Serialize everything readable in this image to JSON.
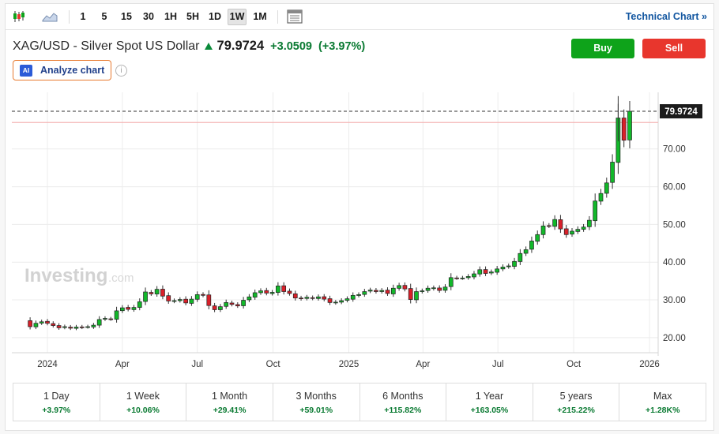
{
  "toolbar": {
    "intervals": [
      "1",
      "5",
      "15",
      "30",
      "1H",
      "5H",
      "1D",
      "1W",
      "1M"
    ],
    "active_interval": "1W",
    "technical_chart_label": "Technical Chart »"
  },
  "quote": {
    "name": "XAG/USD - Silver Spot US Dollar",
    "price": "79.9724",
    "change": "+3.0509",
    "change_pct": "(+3.97%)"
  },
  "actions": {
    "buy_label": "Buy",
    "sell_label": "Sell"
  },
  "analyze": {
    "badge": "AI",
    "label": "Analyze chart",
    "info_glyph": "i"
  },
  "watermark": {
    "brand": "Investing",
    "suffix": ".com"
  },
  "performance": [
    {
      "label": "1 Day",
      "value": "+3.97%"
    },
    {
      "label": "1 Week",
      "value": "+10.06%"
    },
    {
      "label": "1 Month",
      "value": "+29.41%"
    },
    {
      "label": "3 Months",
      "value": "+59.01%"
    },
    {
      "label": "6 Months",
      "value": "+115.82%"
    },
    {
      "label": "1 Year",
      "value": "+163.05%"
    },
    {
      "label": "5 years",
      "value": "+215.22%"
    },
    {
      "label": "Max",
      "value": "+1.28K%"
    }
  ],
  "colors": {
    "up": "#12b82a",
    "down": "#d9202a",
    "link": "#1256a0",
    "positive_text": "#0a7a32"
  },
  "chart_data": {
    "type": "candlestick",
    "timeframe": "1W",
    "ylim": [
      16,
      85
    ],
    "y_ticks": [
      "20.00",
      "30.00",
      "40.00",
      "50.00",
      "60.00",
      "70.00"
    ],
    "y_tick_values": [
      20,
      30,
      40,
      50,
      60,
      70
    ],
    "x_tick_labels": [
      "2024",
      "Apr",
      "Jul",
      "Oct",
      "2025",
      "Apr",
      "Jul",
      "Oct",
      "2026"
    ],
    "x_tick_dates": [
      "2024-01-01",
      "2024-04-01",
      "2024-07-01",
      "2024-10-01",
      "2025-01-01",
      "2025-04-01",
      "2025-07-01",
      "2025-10-01",
      "2026-01-01"
    ],
    "start_date": "2023-12-11",
    "current_price": 79.9724,
    "current_price_label": "79.9724",
    "reference_line": 77.0,
    "closes": [
      22.9,
      23.8,
      24.2,
      23.8,
      23.2,
      22.6,
      22.9,
      22.5,
      22.8,
      22.7,
      22.9,
      23.3,
      24.8,
      25.1,
      24.9,
      27.1,
      27.9,
      27.5,
      28.0,
      29.5,
      32.1,
      31.6,
      32.8,
      31.0,
      29.7,
      29.8,
      30.1,
      29.2,
      30.2,
      31.4,
      31.2,
      28.5,
      27.4,
      28.2,
      29.3,
      28.8,
      28.4,
      29.9,
      30.8,
      31.9,
      32.4,
      31.8,
      32.0,
      33.7,
      32.2,
      31.7,
      30.5,
      30.3,
      30.7,
      30.4,
      30.8,
      30.2,
      29.3,
      29.4,
      29.8,
      30.3,
      31.2,
      31.4,
      32.2,
      32.6,
      32.2,
      32.5,
      31.7,
      33.1,
      33.8,
      32.9,
      30.1,
      32.2,
      32.4,
      33.1,
      33.2,
      32.5,
      33.4,
      35.9,
      35.8,
      35.8,
      36.2,
      36.9,
      38.0,
      37.0,
      37.4,
      38.2,
      38.7,
      39.0,
      40.2,
      42.3,
      43.3,
      45.6,
      47.3,
      49.6,
      49.6,
      51.3,
      48.8,
      47.3,
      48.2,
      48.7,
      49.3,
      51.1,
      56.2,
      58.2,
      61.0,
      66.5,
      78.2,
      72.3,
      79.9724
    ],
    "highs_note": "wick extremes approximate",
    "peak_high": 84.0
  }
}
